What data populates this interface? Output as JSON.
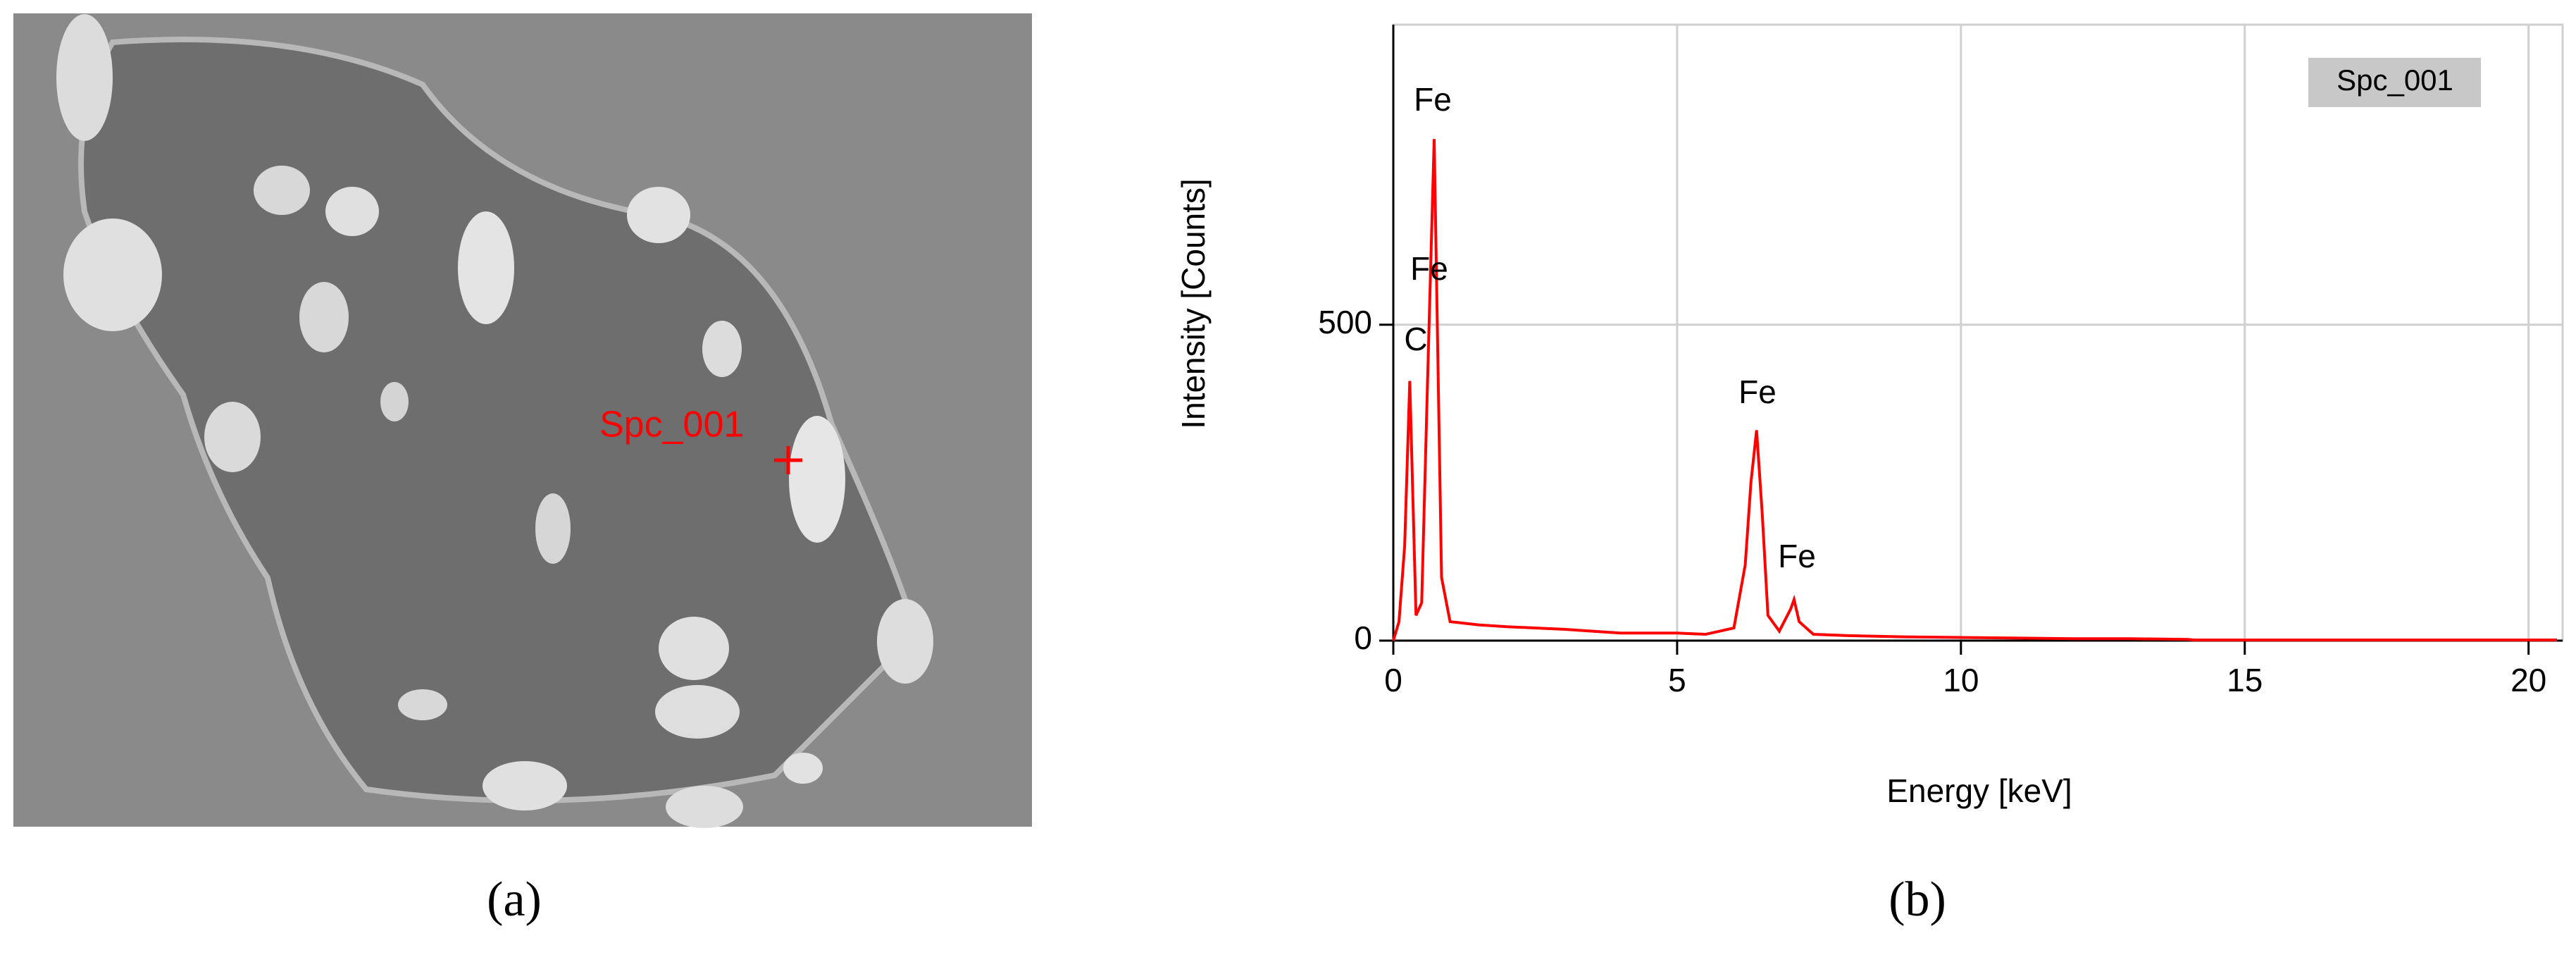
{
  "image": {
    "label": "Spc_001",
    "caption": "(a)"
  },
  "chart_data": {
    "type": "line",
    "caption": "(b)",
    "xlabel": "Energy [keV]",
    "ylabel": "Intensity [Counts]",
    "x": [
      0,
      0.1,
      0.2,
      0.29,
      0.4,
      0.5,
      0.6,
      0.72,
      0.85,
      1.0,
      1.5,
      2,
      3,
      4,
      5,
      5.5,
      6.0,
      6.2,
      6.3,
      6.4,
      6.5,
      6.6,
      6.8,
      7.0,
      7.06,
      7.15,
      7.4,
      8,
      9,
      10,
      11,
      12,
      13,
      14,
      14.1,
      15,
      17,
      20,
      20.5
    ],
    "series": [
      {
        "name": "Spc_001",
        "color": "#ff0000",
        "values": [
          0,
          30,
          150,
          411,
          40,
          60,
          400,
          794,
          100,
          30,
          25,
          22,
          18,
          12,
          12,
          10,
          20,
          120,
          250,
          333,
          200,
          40,
          15,
          50,
          65,
          30,
          10,
          8,
          6,
          5,
          4,
          3,
          3,
          2,
          1,
          1,
          1,
          1,
          1
        ]
      }
    ],
    "annotations": [
      "Fe",
      "Fe",
      "C",
      "Fe",
      "Fe"
    ],
    "xlim": [
      0,
      20.6
    ],
    "xticks": [
      0,
      5,
      10,
      15,
      20
    ],
    "ylim": [
      0,
      975
    ],
    "yticks": [
      0,
      500
    ],
    "grid": true,
    "legend": "top-right"
  }
}
